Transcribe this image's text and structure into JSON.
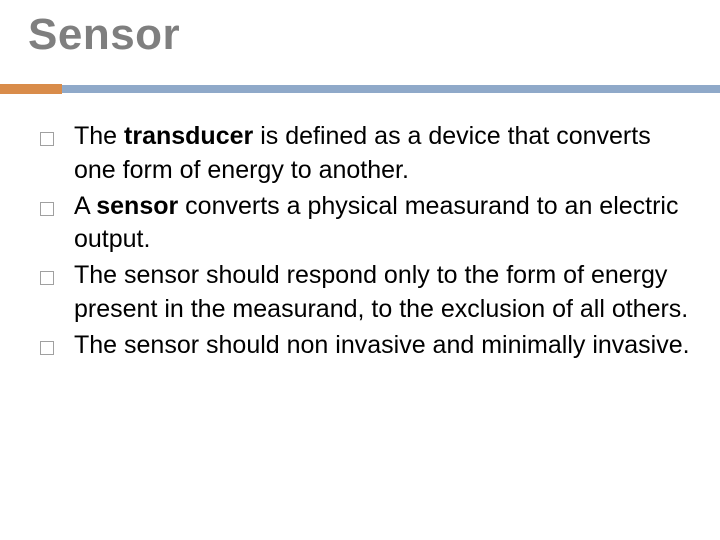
{
  "title": "Sensor",
  "colors": {
    "title_color": "#7f7f7f",
    "orange_accent": "#d98c4a",
    "blue_accent": "#8fa9c9",
    "bullet_border": "#a0a0a0",
    "text_color": "#000000",
    "background": "#ffffff"
  },
  "typography": {
    "title_fontsize": 44,
    "body_fontsize": 25,
    "font_family": "Arial"
  },
  "bullets": [
    {
      "pre": "The ",
      "bold": "transducer",
      "post": " is defined as a device that converts one form of energy to another."
    },
    {
      "pre": "A ",
      "bold": "sensor",
      "post": " converts a physical measurand to an electric output."
    },
    {
      "pre": "",
      "bold": "",
      "post": "The sensor should respond only to the form of energy present in the measurand, to the exclusion of all others."
    },
    {
      "pre": "",
      "bold": "",
      "post": " The sensor should non invasive and minimally invasive."
    }
  ]
}
